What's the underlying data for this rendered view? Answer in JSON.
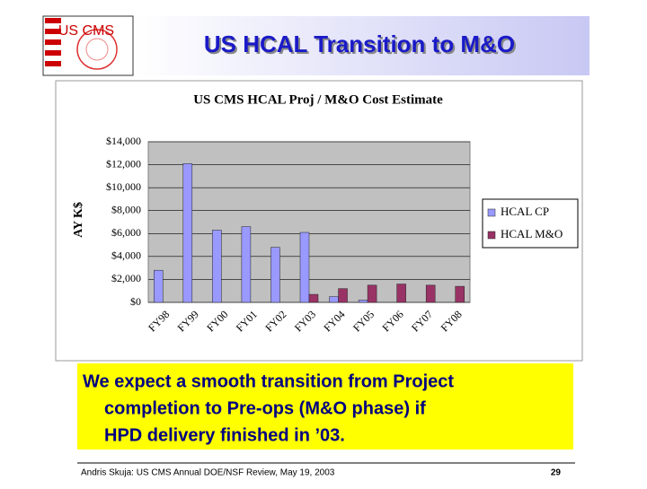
{
  "header": {
    "logo": "US CMS",
    "title": "US HCAL Transition to M&O"
  },
  "chart_data": {
    "type": "bar",
    "title": "US CMS HCAL Proj / M&O Cost Estimate",
    "y_label": "AY K$",
    "categories": [
      "FY98",
      "FY99",
      "FY00",
      "FY01",
      "FY02",
      "FY03",
      "FY04",
      "FY05",
      "FY06",
      "FY07",
      "FY08"
    ],
    "series": [
      {
        "name": "HCAL CP",
        "color": "#9999ff",
        "values": [
          2800,
          12100,
          6300,
          6600,
          4800,
          6100,
          500,
          200,
          0,
          0,
          0
        ]
      },
      {
        "name": "HCAL M&O",
        "color": "#993366",
        "values": [
          0,
          0,
          0,
          0,
          0,
          700,
          1200,
          1500,
          1600,
          1500,
          1400
        ]
      }
    ],
    "ylim": [
      0,
      14000
    ],
    "yticks": [
      {
        "value": 0,
        "label": "$0"
      },
      {
        "value": 2000,
        "label": "$2,000"
      },
      {
        "value": 4000,
        "label": "$4,000"
      },
      {
        "value": 6000,
        "label": "$6,000"
      },
      {
        "value": 8000,
        "label": "$8,000"
      },
      {
        "value": 10000,
        "label": "$10,000"
      },
      {
        "value": 12000,
        "label": "$12,000"
      },
      {
        "value": 14000,
        "label": "$14,000"
      }
    ],
    "grid": true,
    "legend": "right"
  },
  "callout": {
    "lines": [
      "We expect a smooth transition from Project",
      "completion to Pre-ops (M&O phase) if",
      "HPD delivery finished in ’03."
    ]
  },
  "footer": {
    "text": "Andris Skuja: US CMS Annual DOE/NSF Review, May 19, 2003",
    "page": "29"
  }
}
